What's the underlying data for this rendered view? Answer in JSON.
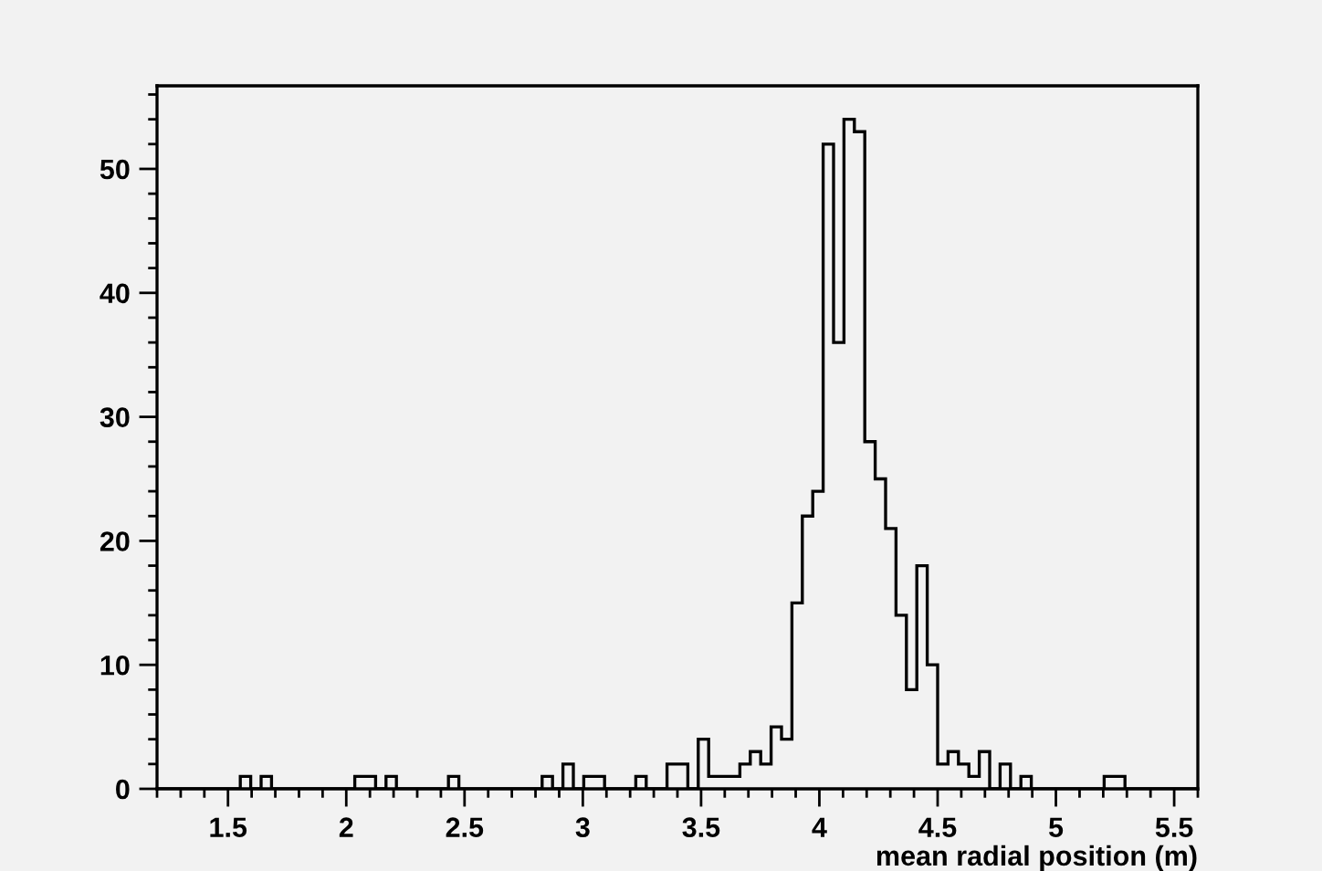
{
  "chart_data": {
    "type": "histogram",
    "xlabel": "mean radial position (m)",
    "bins": [
      1.2,
      1.244,
      1.288,
      1.332,
      1.376,
      1.42,
      1.464,
      1.508,
      1.552,
      1.596,
      1.64,
      1.684,
      1.728,
      1.772,
      1.816,
      1.86,
      1.904,
      1.948,
      1.992,
      2.036,
      2.08,
      2.124,
      2.168,
      2.212,
      2.256,
      2.3,
      2.344,
      2.388,
      2.432,
      2.476,
      2.52,
      2.564,
      2.608,
      2.652,
      2.696,
      2.74,
      2.784,
      2.828,
      2.872,
      2.916,
      2.96,
      3.004,
      3.048,
      3.092,
      3.136,
      3.18,
      3.224,
      3.268,
      3.312,
      3.356,
      3.4,
      3.444,
      3.488,
      3.532,
      3.576,
      3.62,
      3.664,
      3.708,
      3.752,
      3.796,
      3.84,
      3.884,
      3.928,
      3.972,
      4.016,
      4.06,
      4.104,
      4.148,
      4.192,
      4.236,
      4.28,
      4.324,
      4.368,
      4.412,
      4.456,
      4.5,
      4.544,
      4.588,
      4.632,
      4.676,
      4.72,
      4.764,
      4.808,
      4.852,
      4.896,
      4.94,
      4.984,
      5.028,
      5.072,
      5.116,
      5.16,
      5.204,
      5.248,
      5.292,
      5.336,
      5.38,
      5.424,
      5.468,
      5.512,
      5.556,
      5.6
    ],
    "values": [
      0,
      0,
      0,
      0,
      0,
      0,
      0,
      0,
      1,
      0,
      1,
      0,
      0,
      0,
      0,
      0,
      0,
      0,
      0,
      1,
      1,
      0,
      1,
      0,
      0,
      0,
      0,
      0,
      1,
      0,
      0,
      0,
      0,
      0,
      0,
      0,
      0,
      1,
      0,
      2,
      0,
      1,
      1,
      0,
      0,
      0,
      1,
      0,
      0,
      2,
      2,
      0,
      4,
      1,
      1,
      1,
      2,
      3,
      2,
      5,
      4,
      15,
      22,
      24,
      52,
      36,
      54,
      53,
      28,
      25,
      21,
      14,
      8,
      18,
      10,
      2,
      3,
      2,
      1,
      3,
      0,
      2,
      0,
      1,
      0,
      0,
      0,
      0,
      0,
      0,
      0,
      1,
      1,
      0,
      0,
      0,
      0,
      0,
      0,
      0
    ],
    "color": "#000000",
    "xlim": [
      1.2,
      5.6
    ],
    "ylim": [
      0,
      56.7
    ],
    "xticks": [
      1.5,
      2,
      2.5,
      3,
      3.5,
      4,
      4.5,
      5,
      5.5
    ],
    "yticks": [
      0,
      10,
      20,
      30,
      40,
      50
    ],
    "grid": false,
    "legend": false
  }
}
